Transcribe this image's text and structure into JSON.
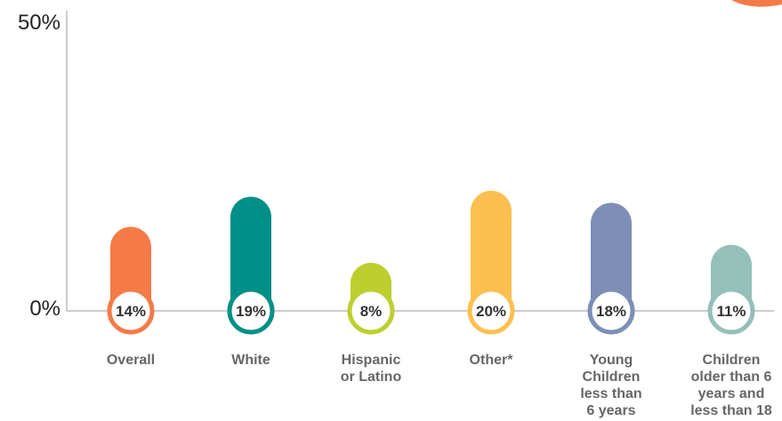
{
  "chart_data": {
    "type": "bar",
    "categories": [
      "Overall",
      "White",
      "Hispanic or Latino",
      "Other*",
      "Young Children less than 6 years",
      "Children older than 6 years and less than 18"
    ],
    "values": [
      14,
      19,
      8,
      20,
      18,
      11
    ],
    "value_labels": [
      "14%",
      "19%",
      "8%",
      "20%",
      "18%",
      "11%"
    ],
    "category_label_lines": [
      [
        "Overall"
      ],
      [
        "White"
      ],
      [
        "Hispanic",
        "or Latino"
      ],
      [
        "Other*"
      ],
      [
        "Young",
        "Children",
        "less than",
        "6 years"
      ],
      [
        "Children",
        "older than 6",
        "years and",
        "less than 18"
      ]
    ],
    "colors": [
      "#f47b47",
      "#009088",
      "#bdcf2e",
      "#fdbf4f",
      "#7d8fb6",
      "#95bfb9"
    ],
    "ylim": [
      0,
      50
    ],
    "y_tick_labels": [
      "0%",
      "50%"
    ],
    "decoration_color": "#f47b47"
  }
}
